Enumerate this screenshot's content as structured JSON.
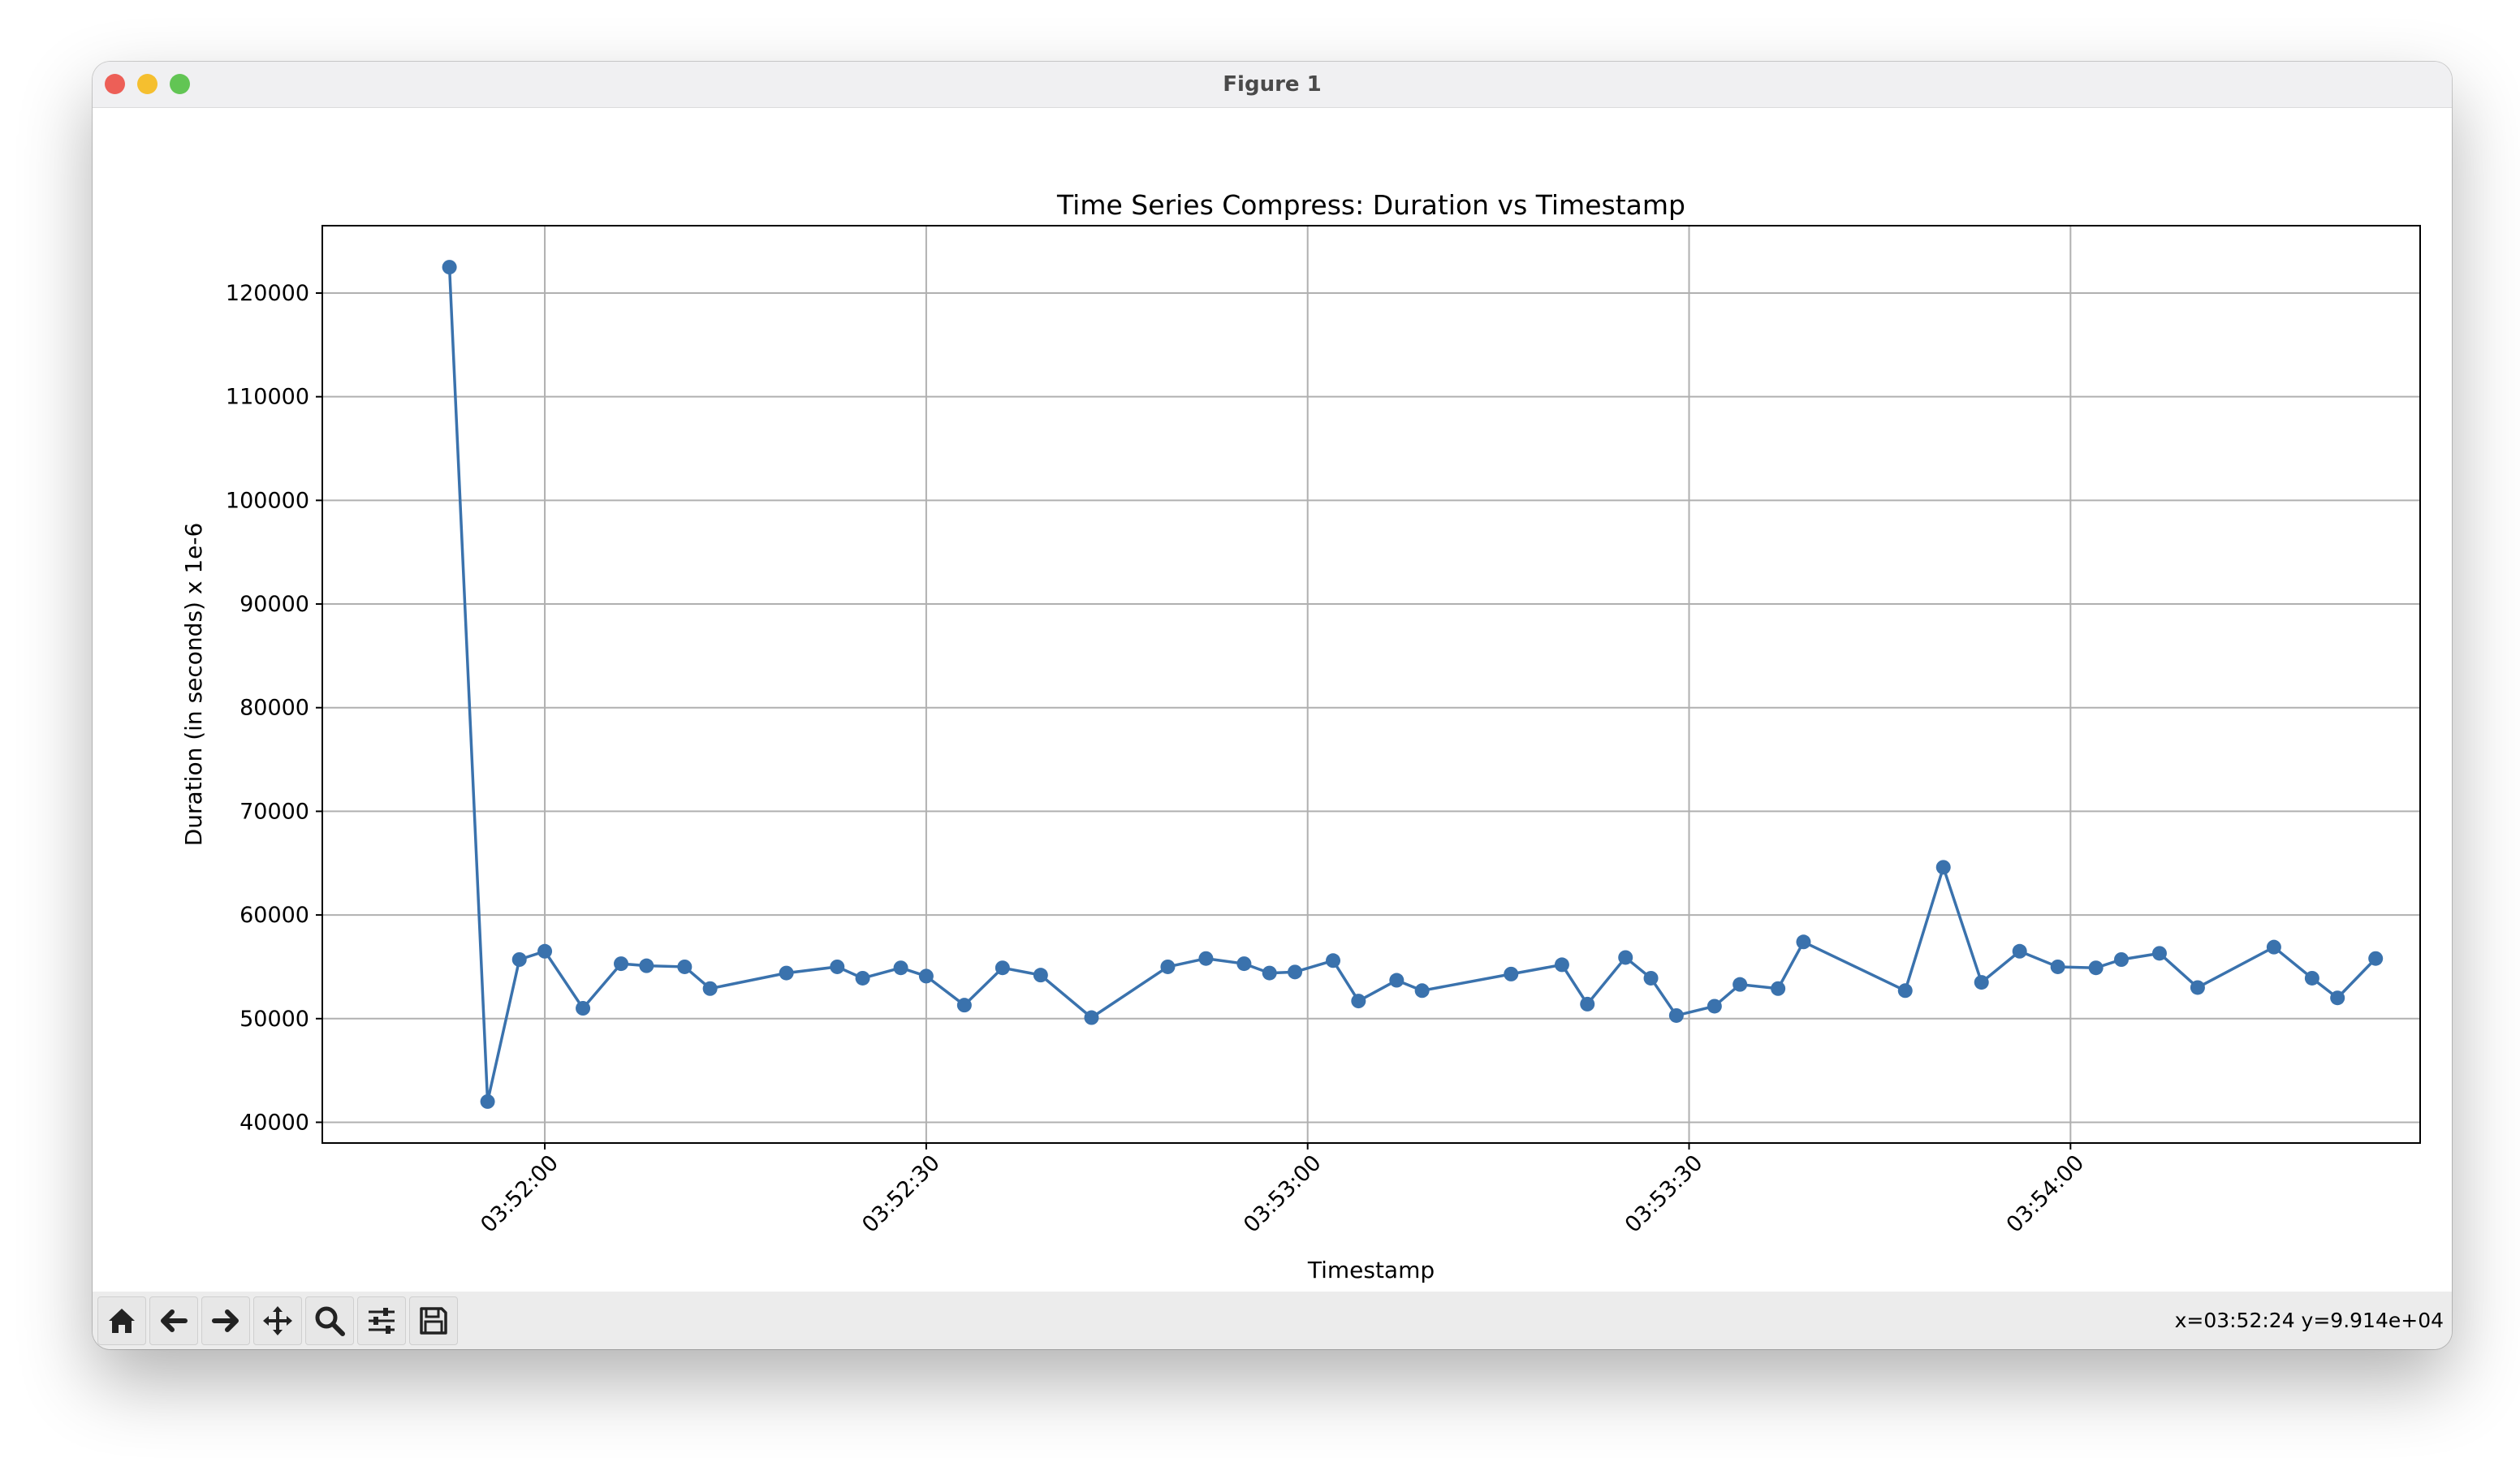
{
  "window": {
    "title": "Figure 1"
  },
  "toolbar": {
    "buttons": [
      {
        "name": "home",
        "icon": "home-icon"
      },
      {
        "name": "back",
        "icon": "arrow-left-icon"
      },
      {
        "name": "forward",
        "icon": "arrow-right-icon"
      },
      {
        "name": "pan",
        "icon": "move-icon"
      },
      {
        "name": "zoom",
        "icon": "magnifier-icon"
      },
      {
        "name": "configure",
        "icon": "sliders-icon"
      },
      {
        "name": "save",
        "icon": "floppy-disk-icon"
      }
    ],
    "coordinates": "x=03:52:24 y=9.914e+04"
  },
  "colors": {
    "line": "#3a72ad",
    "grid": "#b0b0b0",
    "axes": "#000000"
  },
  "chart_data": {
    "type": "line",
    "title": "Time Series Compress: Duration vs Timestamp",
    "xlabel": "Timestamp",
    "ylabel": "Duration (in seconds) x 1e-6",
    "xlim": [
      "03:51:42.5",
      "03:54:27.5"
    ],
    "ylim": [
      38000,
      126500
    ],
    "x_ticks": [
      "03:52:00",
      "03:52:30",
      "03:53:00",
      "03:53:30",
      "03:54:00"
    ],
    "y_ticks": [
      40000,
      50000,
      60000,
      70000,
      80000,
      90000,
      100000,
      110000,
      120000
    ],
    "grid": true,
    "marker": "circle",
    "series": [
      {
        "x": [
          "03:51:52.5",
          "03:51:55.5",
          "03:51:58",
          "03:52:00",
          "03:52:03",
          "03:52:06",
          "03:52:08",
          "03:52:11",
          "03:52:13",
          "03:52:19",
          "03:52:23",
          "03:52:25",
          "03:52:28",
          "03:52:30",
          "03:52:33",
          "03:52:36",
          "03:52:39",
          "03:52:43",
          "03:52:49",
          "03:52:52",
          "03:52:55",
          "03:52:57",
          "03:52:59",
          "03:53:02",
          "03:53:04",
          "03:53:07",
          "03:53:09",
          "03:53:16",
          "03:53:20",
          "03:53:22",
          "03:53:25",
          "03:53:27",
          "03:53:29",
          "03:53:32",
          "03:53:34",
          "03:53:37",
          "03:53:39",
          "03:53:47",
          "03:53:50",
          "03:53:53",
          "03:53:56",
          "03:53:59",
          "03:54:02",
          "03:54:04",
          "03:54:07",
          "03:54:10",
          "03:54:16",
          "03:54:19",
          "03:54:21",
          "03:54:24"
        ],
        "values": [
          122500,
          42000,
          55700,
          56500,
          51000,
          55300,
          55100,
          55000,
          52900,
          54400,
          55000,
          53900,
          54900,
          54100,
          51300,
          54900,
          54200,
          50100,
          55000,
          55800,
          55300,
          54400,
          54500,
          55600,
          51700,
          53700,
          52700,
          54300,
          55200,
          51400,
          55900,
          53900,
          50300,
          51200,
          53300,
          52900,
          57400,
          52700,
          64600,
          53500,
          56500,
          55000,
          54900,
          55700,
          56300,
          53000,
          56900,
          53900,
          52000,
          55800
        ]
      }
    ]
  }
}
